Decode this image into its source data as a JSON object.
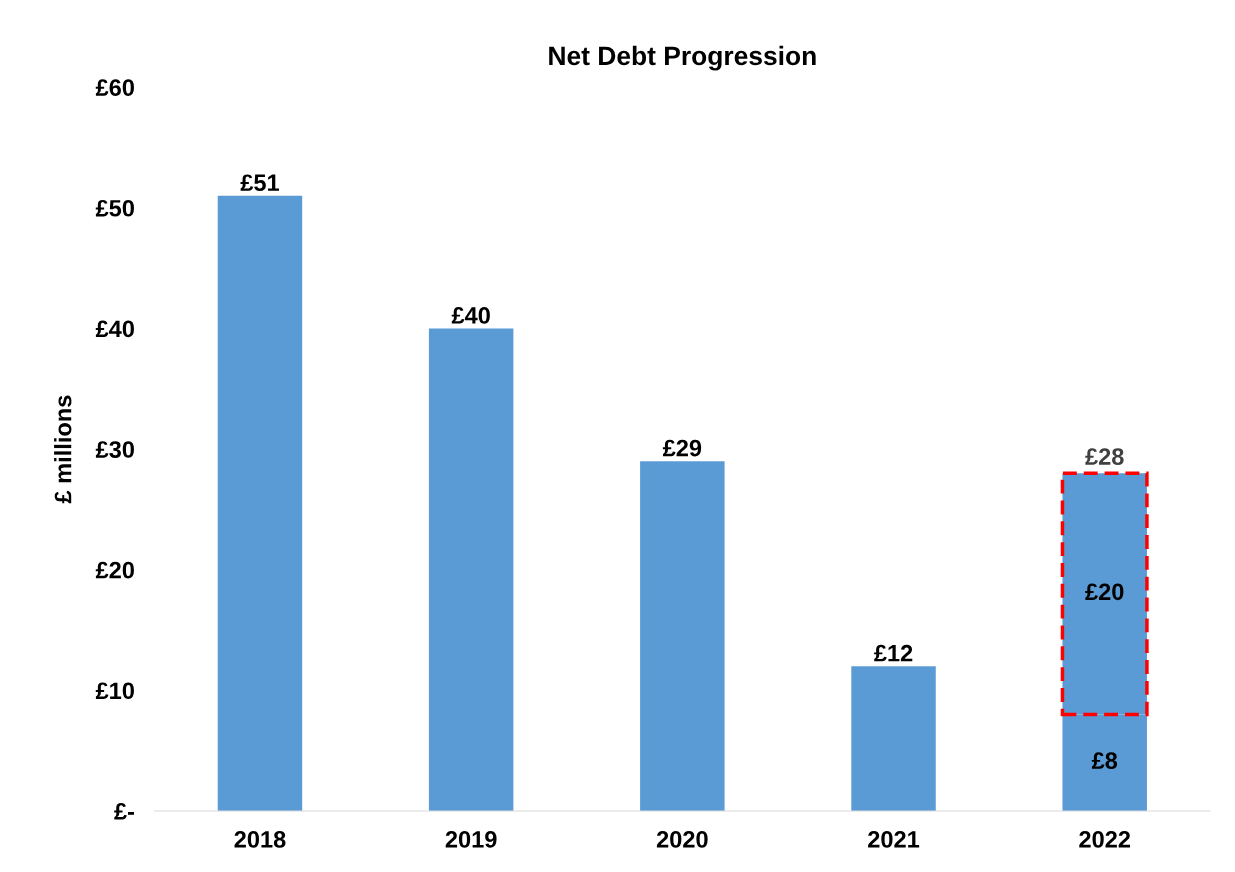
{
  "chart_data": {
    "type": "bar",
    "title": "Net Debt Progression",
    "ylabel": "£ millions",
    "categories": [
      "2018",
      "2019",
      "2020",
      "2021",
      "2022"
    ],
    "stacked": true,
    "series": [
      {
        "color": "#5b9bd5",
        "values": [
          51,
          40,
          29,
          12,
          8
        ],
        "value_labels": [
          "£51",
          "£40",
          "£29",
          "£12",
          "£8"
        ]
      },
      {
        "color": "#5b9bd5",
        "values": [
          null,
          null,
          null,
          null,
          20
        ],
        "value_labels": [
          null,
          null,
          null,
          null,
          "£20"
        ],
        "line_style": "dashed"
      }
    ],
    "totals": [
      null,
      null,
      null,
      null,
      "£28"
    ],
    "ylim": [
      0,
      60
    ],
    "yticks": [
      {
        "value": 0,
        "label": "£-"
      },
      {
        "value": 10,
        "label": "£10"
      },
      {
        "value": 20,
        "label": "£20"
      },
      {
        "value": 30,
        "label": "£30"
      },
      {
        "value": 40,
        "label": "£40"
      },
      {
        "value": 50,
        "label": "£50"
      },
      {
        "value": 60,
        "label": "£60"
      }
    ],
    "grid": false,
    "legend": false
  }
}
